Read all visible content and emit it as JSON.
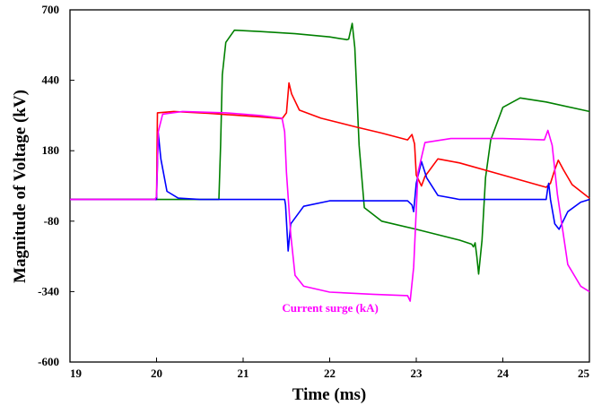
{
  "chart_data": {
    "type": "line",
    "title": "",
    "xlabel": "Time (ms)",
    "ylabel": "Magnitude of Voltage (kV)",
    "xlim": [
      19,
      25
    ],
    "ylim": [
      -600,
      700
    ],
    "xticks": [
      "19",
      "20",
      "21",
      "22",
      "23",
      "24",
      "25"
    ],
    "yticks": [
      "700",
      "440",
      "180",
      "-80",
      "-340",
      "-600"
    ],
    "grid": false,
    "annotation": {
      "text": "Current surge (kA)",
      "color": "#ff00ff",
      "x": 21.45,
      "y": -415
    },
    "series": [
      {
        "color": "#008000",
        "points": [
          [
            19,
            0
          ],
          [
            20.72,
            0
          ],
          [
            20.74,
            200
          ],
          [
            20.76,
            460
          ],
          [
            20.8,
            580
          ],
          [
            20.9,
            625
          ],
          [
            21.2,
            620
          ],
          [
            21.6,
            612
          ],
          [
            22.0,
            600
          ],
          [
            22.2,
            590
          ],
          [
            22.22,
            592
          ],
          [
            22.26,
            650
          ],
          [
            22.29,
            560
          ],
          [
            22.34,
            200
          ],
          [
            22.4,
            -30
          ],
          [
            22.6,
            -80
          ],
          [
            23.0,
            -110
          ],
          [
            23.5,
            -150
          ],
          [
            23.64,
            -165
          ],
          [
            23.66,
            -175
          ],
          [
            23.68,
            -160
          ],
          [
            23.7,
            -210
          ],
          [
            23.72,
            -275
          ],
          [
            23.76,
            -150
          ],
          [
            23.8,
            80
          ],
          [
            23.86,
            220
          ],
          [
            24.0,
            340
          ],
          [
            24.2,
            375
          ],
          [
            24.5,
            360
          ],
          [
            25.0,
            325
          ]
        ]
      },
      {
        "color": "#ff0000",
        "points": [
          [
            19,
            0
          ],
          [
            20.0,
            0
          ],
          [
            20.01,
            320
          ],
          [
            20.2,
            325
          ],
          [
            20.6,
            318
          ],
          [
            21.2,
            305
          ],
          [
            21.45,
            298
          ],
          [
            21.5,
            320
          ],
          [
            21.53,
            430
          ],
          [
            21.56,
            390
          ],
          [
            21.65,
            330
          ],
          [
            21.9,
            300
          ],
          [
            22.3,
            268
          ],
          [
            22.6,
            245
          ],
          [
            22.9,
            220
          ],
          [
            22.95,
            240
          ],
          [
            22.98,
            205
          ],
          [
            23.0,
            90
          ],
          [
            23.06,
            50
          ],
          [
            23.1,
            85
          ],
          [
            23.25,
            150
          ],
          [
            23.5,
            135
          ],
          [
            24.0,
            90
          ],
          [
            24.5,
            45
          ],
          [
            24.55,
            60
          ],
          [
            24.6,
            110
          ],
          [
            24.64,
            145
          ],
          [
            24.7,
            110
          ],
          [
            24.8,
            55
          ],
          [
            25.0,
            5
          ]
        ]
      },
      {
        "color": "#0000ff",
        "points": [
          [
            19,
            0
          ],
          [
            20.0,
            0
          ],
          [
            20.02,
            245
          ],
          [
            20.05,
            150
          ],
          [
            20.12,
            30
          ],
          [
            20.25,
            5
          ],
          [
            20.5,
            0
          ],
          [
            21.48,
            0
          ],
          [
            21.49,
            -20
          ],
          [
            21.52,
            -190
          ],
          [
            21.55,
            -90
          ],
          [
            21.7,
            -25
          ],
          [
            22.0,
            -5
          ],
          [
            22.9,
            -5
          ],
          [
            22.95,
            -20
          ],
          [
            22.97,
            -45
          ],
          [
            23.0,
            60
          ],
          [
            23.06,
            140
          ],
          [
            23.12,
            80
          ],
          [
            23.25,
            15
          ],
          [
            23.5,
            0
          ],
          [
            24.5,
            0
          ],
          [
            24.52,
            45
          ],
          [
            24.53,
            60
          ],
          [
            24.55,
            0
          ],
          [
            24.6,
            -90
          ],
          [
            24.65,
            -110
          ],
          [
            24.75,
            -45
          ],
          [
            24.9,
            -10
          ],
          [
            25.0,
            0
          ]
        ]
      },
      {
        "color": "#ff00ff",
        "points": [
          [
            19,
            0
          ],
          [
            19.98,
            0
          ],
          [
            20.0,
            10
          ],
          [
            20.02,
            250
          ],
          [
            20.07,
            315
          ],
          [
            20.3,
            325
          ],
          [
            20.8,
            320
          ],
          [
            21.2,
            310
          ],
          [
            21.45,
            300
          ],
          [
            21.48,
            250
          ],
          [
            21.5,
            100
          ],
          [
            21.55,
            -130
          ],
          [
            21.6,
            -280
          ],
          [
            21.7,
            -320
          ],
          [
            22.0,
            -342
          ],
          [
            22.5,
            -350
          ],
          [
            22.9,
            -355
          ],
          [
            22.93,
            -375
          ],
          [
            22.97,
            -250
          ],
          [
            23.02,
            100
          ],
          [
            23.1,
            210
          ],
          [
            23.4,
            225
          ],
          [
            24.0,
            225
          ],
          [
            24.48,
            220
          ],
          [
            24.52,
            255
          ],
          [
            24.57,
            200
          ],
          [
            24.63,
            20
          ],
          [
            24.75,
            -240
          ],
          [
            24.9,
            -320
          ],
          [
            25.0,
            -340
          ]
        ]
      }
    ]
  }
}
